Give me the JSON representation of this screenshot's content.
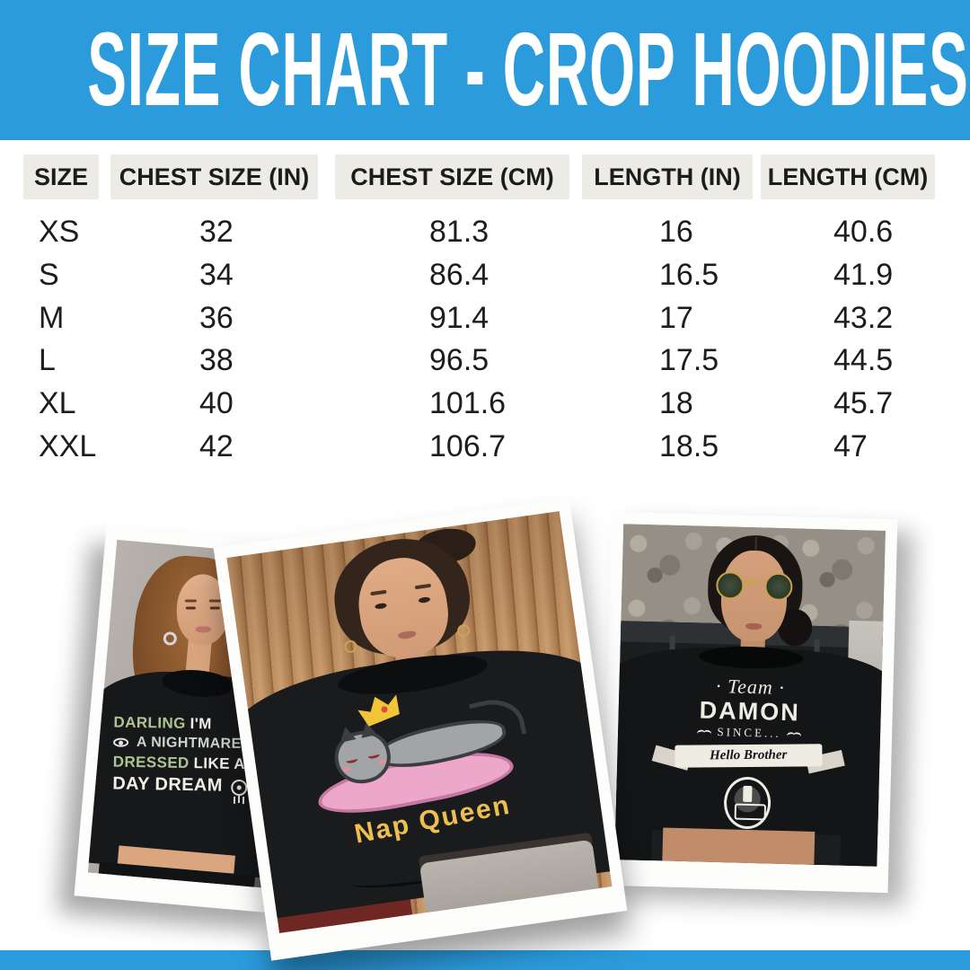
{
  "colors": {
    "accent_blue": "#2B9BDC",
    "chip_bg": "#EDEBE6",
    "text": "#1C1C1C",
    "print_green": "#AFC492",
    "print_white": "#F1EFE8",
    "nap_queen_yellow": "#ECBF4E"
  },
  "header": {
    "title": "SIZE CHART - CROP HOODIES"
  },
  "chart_data": {
    "type": "table",
    "title": "SIZE CHART - CROP HOODIES",
    "columns": [
      "SIZE",
      "CHEST SIZE (IN)",
      "CHEST SIZE (CM)",
      "LENGTH (IN)",
      "LENGTH (CM)"
    ],
    "rows": [
      [
        "XS",
        "32",
        "81.3",
        "16",
        "40.6"
      ],
      [
        "S",
        "34",
        "86.4",
        "16.5",
        "41.9"
      ],
      [
        "M",
        "36",
        "91.4",
        "17",
        "43.2"
      ],
      [
        "L",
        "38",
        "96.5",
        "17.5",
        "44.5"
      ],
      [
        "XL",
        "40",
        "101.6",
        "18",
        "45.7"
      ],
      [
        "XXL",
        "42",
        "106.7",
        "18.5",
        "47"
      ]
    ]
  },
  "photos": [
    {
      "alt": "model wearing black crop hoodie against gray wall",
      "print": {
        "line1_green": "DARLING",
        "line1_white": "I'M",
        "line2": "A NIGHTMARE",
        "line3_green": "DRESSED",
        "line3_white": "LIKE A",
        "line4": "DAY DREAM"
      }
    },
    {
      "alt": "model wearing black crop hoodie against wooden wall",
      "print": {
        "text": "Nap Queen"
      }
    },
    {
      "alt": "model with sunglasses wearing black crop hoodie outside",
      "print": {
        "line1": "· Team ·",
        "line2": "DAMON",
        "line3": "SINCE...",
        "banner": "Hello Brother"
      }
    }
  ]
}
